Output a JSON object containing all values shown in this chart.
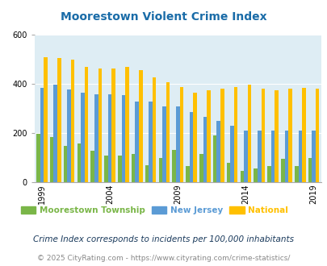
{
  "title": "Moorestown Violent Crime Index",
  "years": [
    1999,
    2000,
    2001,
    2002,
    2003,
    2004,
    2005,
    2006,
    2007,
    2008,
    2009,
    2010,
    2011,
    2012,
    2013,
    2014,
    2015,
    2016,
    2017,
    2018,
    2019
  ],
  "moorestown": [
    197,
    182,
    148,
    157,
    128,
    108,
    109,
    115,
    68,
    97,
    130,
    65,
    115,
    190,
    80,
    45,
    57,
    67,
    95,
    67,
    97
  ],
  "new_jersey": [
    385,
    398,
    378,
    363,
    358,
    358,
    353,
    327,
    327,
    308,
    307,
    286,
    264,
    250,
    230,
    209,
    209,
    209,
    210,
    209,
    209
  ],
  "national": [
    507,
    506,
    497,
    467,
    462,
    463,
    470,
    455,
    427,
    405,
    388,
    363,
    372,
    381,
    386,
    395,
    381,
    375,
    380,
    383,
    379
  ],
  "moorestown_color": "#7ab648",
  "nj_color": "#5b9bd5",
  "national_color": "#ffc000",
  "plot_bg": "#deedf4",
  "title_color": "#1a6ca8",
  "legend_label1": "Moorestown Township",
  "legend_label2": "New Jersey",
  "legend_label3": "National",
  "footnote1": "Crime Index corresponds to incidents per 100,000 inhabitants",
  "footnote2": "© 2025 CityRating.com - https://www.cityrating.com/crime-statistics/",
  "ylim": [
    0,
    600
  ],
  "yticks": [
    0,
    200,
    400,
    600
  ],
  "tick_years": [
    1999,
    2004,
    2009,
    2014,
    2019
  ],
  "title_fontsize": 10,
  "tick_fontsize": 7,
  "footnote1_fontsize": 7.5,
  "footnote2_fontsize": 6.5
}
